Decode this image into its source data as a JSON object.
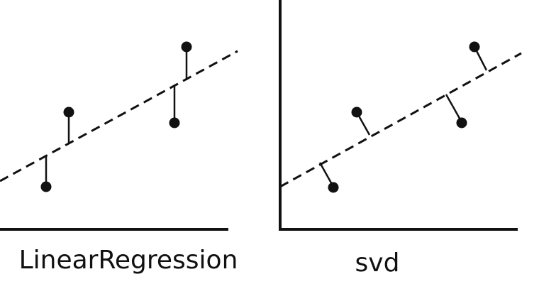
{
  "diagram": {
    "line_color": "#111111",
    "panels": [
      {
        "id": "linear-regression",
        "caption": "LinearRegression",
        "residual_direction": "vertical",
        "points": 4
      },
      {
        "id": "svd",
        "caption": "svd",
        "residual_direction": "perpendicular",
        "points": 4
      }
    ]
  }
}
